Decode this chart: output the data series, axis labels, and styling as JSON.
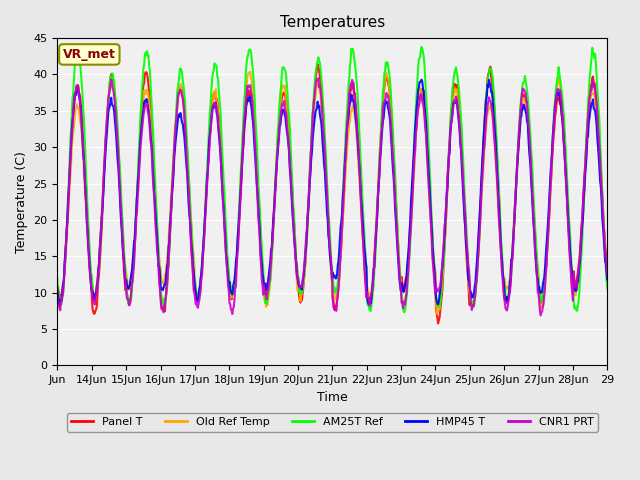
{
  "title": "Temperatures",
  "xlabel": "Time",
  "ylabel": "Temperature (C)",
  "ylim": [
    0,
    45
  ],
  "yticks": [
    0,
    5,
    10,
    15,
    20,
    25,
    30,
    35,
    40,
    45
  ],
  "annotation_text": "VR_met",
  "annotation_color": "#8B0000",
  "annotation_bg": "#FFFFCC",
  "annotation_border": "#8B8B00",
  "series": [
    {
      "label": "Panel T",
      "color": "#FF0000",
      "lw": 1.5
    },
    {
      "label": "Old Ref Temp",
      "color": "#FFA500",
      "lw": 1.5
    },
    {
      "label": "AM25T Ref",
      "color": "#00FF00",
      "lw": 1.5
    },
    {
      "label": "HMP45 T",
      "color": "#0000FF",
      "lw": 1.5
    },
    {
      "label": "CNR1 PRT",
      "color": "#CC00CC",
      "lw": 1.5
    }
  ],
  "x_tick_labels": [
    "Jun",
    "14Jun",
    "15Jun",
    "16Jun",
    "17Jun",
    "18Jun",
    "19Jun",
    "20Jun",
    "21Jun",
    "22Jun",
    "23Jun",
    "24Jun",
    "25Jun",
    "26Jun",
    "27Jun",
    "28Jun",
    "29"
  ],
  "bg_color": "#E8E8E8",
  "plot_bg_color": "#F0F0F0",
  "figsize": [
    6.4,
    4.8
  ],
  "dpi": 100,
  "n_days": 16,
  "samples_per_day": 48
}
